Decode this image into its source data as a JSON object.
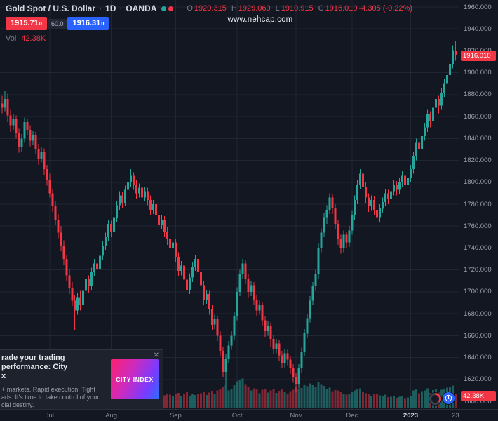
{
  "header": {
    "symbol": "Gold Spot / U.S. Dollar",
    "sep": "·",
    "interval": "1D",
    "exchange": "OANDA",
    "ohlc": {
      "o_label": "O",
      "o_value": "1920.315",
      "h_label": "H",
      "h_value": "1929.060",
      "l_label": "L",
      "l_value": "1910.915",
      "c_label": "C",
      "c_value": "1916.010",
      "change": "-4.305 (-0.22%)"
    },
    "sell_price": "1915.71",
    "sell_sup": "0",
    "spread": "60.0",
    "buy_price": "1916.31",
    "buy_sup": "0",
    "vol_label": "Vol",
    "vol_value": "42.38K"
  },
  "watermark": "www.nehcap.com",
  "price_axis": {
    "ticks": [
      "1960.000",
      "1940.000",
      "1920.000",
      "1900.000",
      "1880.000",
      "1860.000",
      "1840.000",
      "1820.000",
      "1800.000",
      "1780.000",
      "1760.000",
      "1740.000",
      "1720.000",
      "1700.000",
      "1680.000",
      "1660.000",
      "1640.000",
      "1620.000",
      "1600.000"
    ],
    "price_badge": "1916.010",
    "volume_badge": "42.38K"
  },
  "time_axis": {
    "labels": [
      {
        "text": "Jul",
        "i": 17
      },
      {
        "text": "Aug",
        "i": 39
      },
      {
        "text": "Sep",
        "i": 62
      },
      {
        "text": "Oct",
        "i": 84
      },
      {
        "text": "Nov",
        "i": 105
      },
      {
        "text": "Dec",
        "i": 125
      },
      {
        "text": "2023",
        "i": 146,
        "year": true
      },
      {
        "text": "23",
        "i": 162,
        "nogrid": true
      }
    ]
  },
  "ad_popup": {
    "headline_lines": [
      "rade your trading performance: City",
      "x"
    ],
    "body_lines": [
      "+ markets. Rapid execution. Tight",
      "ads. It's time to take control of your",
      "cial destiny."
    ],
    "logo_text": "CITY INDEX",
    "close_label": "✕"
  },
  "colors": {
    "up": "#26a69a",
    "down": "#f23645",
    "buy": "#2962ff",
    "sell": "#f23645",
    "grid": "#212634",
    "background": "#131722"
  },
  "chart_data": {
    "type": "candlestick",
    "title": "Gold Spot / U.S. Dollar · 1D · OANDA",
    "price_range": [
      1600,
      1960
    ],
    "y_tick_step": 20,
    "last_price": 1916.01,
    "last_volume_k": 42.38,
    "dotted_price_lines": [
      1929.06,
      1916.01
    ],
    "legend_position": "top-left",
    "grid": true,
    "candles_format": [
      "open",
      "high",
      "low",
      "close",
      "volume_k"
    ],
    "candles": [
      [
        1872,
        1879,
        1863,
        1868,
        35
      ],
      [
        1868,
        1883,
        1865,
        1876,
        41
      ],
      [
        1876,
        1881,
        1855,
        1861,
        44
      ],
      [
        1861,
        1866,
        1846,
        1852,
        39
      ],
      [
        1852,
        1862,
        1848,
        1858,
        33
      ],
      [
        1858,
        1861,
        1840,
        1845,
        46
      ],
      [
        1845,
        1849,
        1827,
        1832,
        52
      ],
      [
        1832,
        1844,
        1828,
        1840,
        37
      ],
      [
        1840,
        1859,
        1836,
        1855,
        43
      ],
      [
        1855,
        1858,
        1843,
        1848,
        31
      ],
      [
        1848,
        1852,
        1833,
        1838,
        36
      ],
      [
        1838,
        1847,
        1834,
        1843,
        29
      ],
      [
        1843,
        1846,
        1826,
        1830,
        40
      ],
      [
        1830,
        1835,
        1816,
        1821,
        45
      ],
      [
        1821,
        1832,
        1818,
        1828,
        34
      ],
      [
        1828,
        1831,
        1807,
        1812,
        48
      ],
      [
        1812,
        1816,
        1797,
        1802,
        51
      ],
      [
        1802,
        1808,
        1786,
        1790,
        46
      ],
      [
        1790,
        1794,
        1773,
        1778,
        49
      ],
      [
        1778,
        1783,
        1761,
        1766,
        53
      ],
      [
        1766,
        1771,
        1749,
        1754,
        47
      ],
      [
        1754,
        1760,
        1737,
        1742,
        55
      ],
      [
        1742,
        1747,
        1725,
        1730,
        58
      ],
      [
        1730,
        1734,
        1710,
        1715,
        62
      ],
      [
        1715,
        1721,
        1698,
        1703,
        57
      ],
      [
        1703,
        1709,
        1687,
        1692,
        54
      ],
      [
        1692,
        1697,
        1665,
        1683,
        66
      ],
      [
        1683,
        1699,
        1679,
        1695,
        48
      ],
      [
        1695,
        1701,
        1683,
        1688,
        42
      ],
      [
        1688,
        1705,
        1685,
        1701,
        45
      ],
      [
        1701,
        1716,
        1697,
        1712,
        47
      ],
      [
        1712,
        1715,
        1699,
        1705,
        39
      ],
      [
        1705,
        1722,
        1702,
        1718,
        44
      ],
      [
        1718,
        1730,
        1714,
        1726,
        41
      ],
      [
        1726,
        1729,
        1716,
        1721,
        36
      ],
      [
        1721,
        1737,
        1718,
        1733,
        43
      ],
      [
        1733,
        1746,
        1729,
        1742,
        46
      ],
      [
        1742,
        1754,
        1738,
        1750,
        44
      ],
      [
        1750,
        1766,
        1746,
        1762,
        48
      ],
      [
        1762,
        1765,
        1750,
        1755,
        39
      ],
      [
        1755,
        1772,
        1752,
        1768,
        45
      ],
      [
        1768,
        1783,
        1764,
        1779,
        47
      ],
      [
        1779,
        1792,
        1775,
        1788,
        50
      ],
      [
        1788,
        1791,
        1776,
        1781,
        38
      ],
      [
        1781,
        1797,
        1778,
        1793,
        46
      ],
      [
        1793,
        1804,
        1789,
        1800,
        49
      ],
      [
        1800,
        1812,
        1796,
        1806,
        53
      ],
      [
        1806,
        1809,
        1793,
        1798,
        41
      ],
      [
        1798,
        1802,
        1785,
        1790,
        38
      ],
      [
        1790,
        1799,
        1786,
        1795,
        35
      ],
      [
        1795,
        1798,
        1781,
        1786,
        37
      ],
      [
        1786,
        1796,
        1783,
        1792,
        33
      ],
      [
        1792,
        1795,
        1779,
        1784,
        36
      ],
      [
        1784,
        1788,
        1770,
        1775,
        40
      ],
      [
        1775,
        1784,
        1771,
        1780,
        34
      ],
      [
        1780,
        1783,
        1765,
        1770,
        38
      ],
      [
        1770,
        1774,
        1756,
        1761,
        42
      ],
      [
        1761,
        1770,
        1757,
        1766,
        35
      ],
      [
        1766,
        1769,
        1750,
        1755,
        39
      ],
      [
        1755,
        1759,
        1743,
        1748,
        43
      ],
      [
        1748,
        1752,
        1735,
        1740,
        41
      ],
      [
        1740,
        1749,
        1736,
        1745,
        36
      ],
      [
        1745,
        1748,
        1727,
        1732,
        44
      ],
      [
        1732,
        1736,
        1714,
        1719,
        47
      ],
      [
        1719,
        1728,
        1715,
        1724,
        38
      ],
      [
        1724,
        1727,
        1706,
        1711,
        45
      ],
      [
        1711,
        1716,
        1697,
        1702,
        49
      ],
      [
        1702,
        1717,
        1698,
        1713,
        37
      ],
      [
        1713,
        1727,
        1709,
        1723,
        42
      ],
      [
        1723,
        1734,
        1719,
        1730,
        40
      ],
      [
        1730,
        1733,
        1713,
        1718,
        43
      ],
      [
        1718,
        1722,
        1701,
        1706,
        46
      ],
      [
        1706,
        1710,
        1688,
        1693,
        51
      ],
      [
        1693,
        1702,
        1689,
        1698,
        40
      ],
      [
        1698,
        1701,
        1679,
        1684,
        48
      ],
      [
        1684,
        1688,
        1665,
        1670,
        53
      ],
      [
        1670,
        1679,
        1666,
        1675,
        42
      ],
      [
        1675,
        1678,
        1655,
        1660,
        55
      ],
      [
        1660,
        1664,
        1641,
        1646,
        60
      ],
      [
        1646,
        1650,
        1622,
        1627,
        67
      ],
      [
        1627,
        1643,
        1615,
        1639,
        72
      ],
      [
        1639,
        1655,
        1635,
        1651,
        54
      ],
      [
        1651,
        1664,
        1647,
        1660,
        59
      ],
      [
        1660,
        1682,
        1656,
        1678,
        71
      ],
      [
        1678,
        1704,
        1674,
        1700,
        83
      ],
      [
        1700,
        1720,
        1696,
        1716,
        88
      ],
      [
        1716,
        1730,
        1712,
        1726,
        92
      ],
      [
        1726,
        1729,
        1707,
        1712,
        74
      ],
      [
        1712,
        1716,
        1695,
        1700,
        67
      ],
      [
        1700,
        1710,
        1696,
        1706,
        55
      ],
      [
        1706,
        1709,
        1688,
        1693,
        61
      ],
      [
        1693,
        1697,
        1678,
        1683,
        58
      ],
      [
        1683,
        1692,
        1679,
        1688,
        46
      ],
      [
        1688,
        1691,
        1669,
        1674,
        57
      ],
      [
        1674,
        1678,
        1659,
        1664,
        60
      ],
      [
        1664,
        1673,
        1660,
        1669,
        48
      ],
      [
        1669,
        1672,
        1650,
        1657,
        55
      ],
      [
        1657,
        1661,
        1643,
        1648,
        59
      ],
      [
        1648,
        1657,
        1644,
        1653,
        47
      ],
      [
        1653,
        1656,
        1637,
        1642,
        53
      ],
      [
        1642,
        1646,
        1630,
        1635,
        58
      ],
      [
        1635,
        1648,
        1631,
        1644,
        49
      ],
      [
        1644,
        1647,
        1633,
        1638,
        45
      ],
      [
        1638,
        1641,
        1625,
        1630,
        52
      ],
      [
        1630,
        1634,
        1617,
        1622,
        57
      ],
      [
        1622,
        1626,
        1608,
        1616,
        64
      ],
      [
        1616,
        1634,
        1612,
        1630,
        59
      ],
      [
        1630,
        1649,
        1626,
        1645,
        62
      ],
      [
        1645,
        1666,
        1641,
        1662,
        71
      ],
      [
        1662,
        1680,
        1658,
        1676,
        68
      ],
      [
        1676,
        1696,
        1672,
        1692,
        77
      ],
      [
        1692,
        1709,
        1688,
        1705,
        72
      ],
      [
        1705,
        1720,
        1701,
        1716,
        66
      ],
      [
        1716,
        1744,
        1712,
        1740,
        81
      ],
      [
        1740,
        1758,
        1736,
        1754,
        74
      ],
      [
        1754,
        1772,
        1750,
        1768,
        69
      ],
      [
        1768,
        1779,
        1762,
        1775,
        58
      ],
      [
        1775,
        1790,
        1771,
        1786,
        63
      ],
      [
        1786,
        1789,
        1771,
        1776,
        52
      ],
      [
        1776,
        1780,
        1757,
        1762,
        56
      ],
      [
        1762,
        1766,
        1743,
        1748,
        54
      ],
      [
        1748,
        1752,
        1735,
        1740,
        49
      ],
      [
        1740,
        1756,
        1736,
        1752,
        45
      ],
      [
        1752,
        1755,
        1740,
        1745,
        41
      ],
      [
        1745,
        1760,
        1741,
        1756,
        44
      ],
      [
        1756,
        1774,
        1752,
        1770,
        51
      ],
      [
        1770,
        1788,
        1766,
        1784,
        55
      ],
      [
        1784,
        1802,
        1780,
        1798,
        58
      ],
      [
        1798,
        1812,
        1794,
        1808,
        61
      ],
      [
        1808,
        1811,
        1791,
        1796,
        49
      ],
      [
        1796,
        1800,
        1781,
        1786,
        46
      ],
      [
        1786,
        1790,
        1773,
        1778,
        44
      ],
      [
        1778,
        1788,
        1774,
        1784,
        38
      ],
      [
        1784,
        1787,
        1770,
        1775,
        42
      ],
      [
        1775,
        1779,
        1763,
        1768,
        45
      ],
      [
        1768,
        1780,
        1764,
        1776,
        39
      ],
      [
        1776,
        1786,
        1772,
        1782,
        36
      ],
      [
        1782,
        1794,
        1778,
        1790,
        41
      ],
      [
        1790,
        1793,
        1780,
        1785,
        33
      ],
      [
        1785,
        1796,
        1781,
        1792,
        35
      ],
      [
        1792,
        1802,
        1788,
        1798,
        38
      ],
      [
        1798,
        1801,
        1788,
        1793,
        31
      ],
      [
        1793,
        1804,
        1789,
        1800,
        34
      ],
      [
        1800,
        1810,
        1796,
        1806,
        37
      ],
      [
        1806,
        1809,
        1793,
        1798,
        30
      ],
      [
        1798,
        1808,
        1794,
        1804,
        32
      ],
      [
        1804,
        1816,
        1800,
        1812,
        36
      ],
      [
        1812,
        1828,
        1808,
        1824,
        54
      ],
      [
        1824,
        1840,
        1820,
        1836,
        58
      ],
      [
        1836,
        1839,
        1824,
        1830,
        46
      ],
      [
        1830,
        1846,
        1826,
        1842,
        52
      ],
      [
        1842,
        1854,
        1838,
        1850,
        55
      ],
      [
        1850,
        1866,
        1846,
        1862,
        61
      ],
      [
        1862,
        1865,
        1850,
        1856,
        47
      ],
      [
        1856,
        1872,
        1852,
        1868,
        56
      ],
      [
        1868,
        1880,
        1864,
        1876,
        59
      ],
      [
        1876,
        1879,
        1863,
        1870,
        48
      ],
      [
        1870,
        1886,
        1866,
        1882,
        57
      ],
      [
        1882,
        1894,
        1878,
        1890,
        60
      ],
      [
        1890,
        1902,
        1886,
        1898,
        63
      ],
      [
        1898,
        1912,
        1894,
        1908,
        66
      ],
      [
        1908,
        1925,
        1904,
        1920.5,
        70
      ],
      [
        1920.315,
        1929.06,
        1910.915,
        1916.01,
        42.38
      ]
    ]
  }
}
